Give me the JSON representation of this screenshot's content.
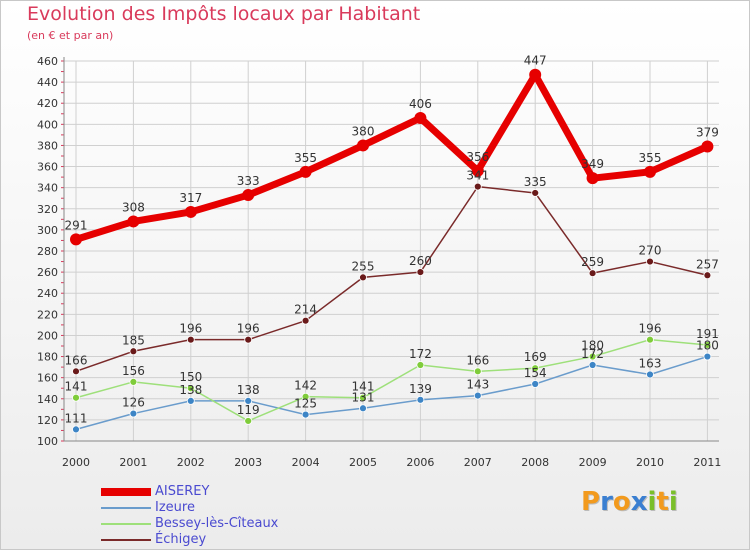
{
  "chart_data": {
    "type": "line",
    "title": "Evolution des Impôts locaux par Habitant",
    "subtitle": "(en € et par an)",
    "xlabel": "",
    "ylabel": "",
    "x": [
      "2000",
      "2001",
      "2002",
      "2003",
      "2004",
      "2005",
      "2006",
      "2007",
      "2008",
      "2009",
      "2010",
      "2011"
    ],
    "yticks": [
      100,
      120,
      140,
      160,
      180,
      200,
      220,
      240,
      260,
      280,
      300,
      320,
      340,
      360,
      380,
      400,
      420,
      440,
      460
    ],
    "ylim": [
      100,
      460
    ],
    "grid": true,
    "legend_position": "bottom-left",
    "series": [
      {
        "name": "AISEREY",
        "color": "#e60000",
        "values": [
          291,
          308,
          317,
          333,
          355,
          380,
          406,
          356,
          447,
          349,
          355,
          379
        ]
      },
      {
        "name": "Izeure",
        "color": "#6a9ccc",
        "values": [
          111,
          126,
          138,
          138,
          125,
          131,
          139,
          143,
          154,
          172,
          163,
          180
        ]
      },
      {
        "name": "Bessey-lès-Cîteaux",
        "color": "#9ee07a",
        "values": [
          141,
          156,
          150,
          119,
          142,
          141,
          172,
          166,
          169,
          180,
          196,
          191
        ]
      },
      {
        "name": "Échigey",
        "color": "#7a2a2a",
        "values": [
          166,
          185,
          196,
          196,
          214,
          255,
          260,
          341,
          335,
          259,
          270,
          257
        ]
      }
    ]
  },
  "logo": {
    "letters": [
      "P",
      "r",
      "o",
      "x",
      "i",
      "t",
      "i"
    ],
    "colors": [
      "#f29a1d",
      "#3a7fd1",
      "#f29a1d",
      "#3a7fd1",
      "#7abf2a",
      "#f29a1d",
      "#7abf2a"
    ]
  }
}
